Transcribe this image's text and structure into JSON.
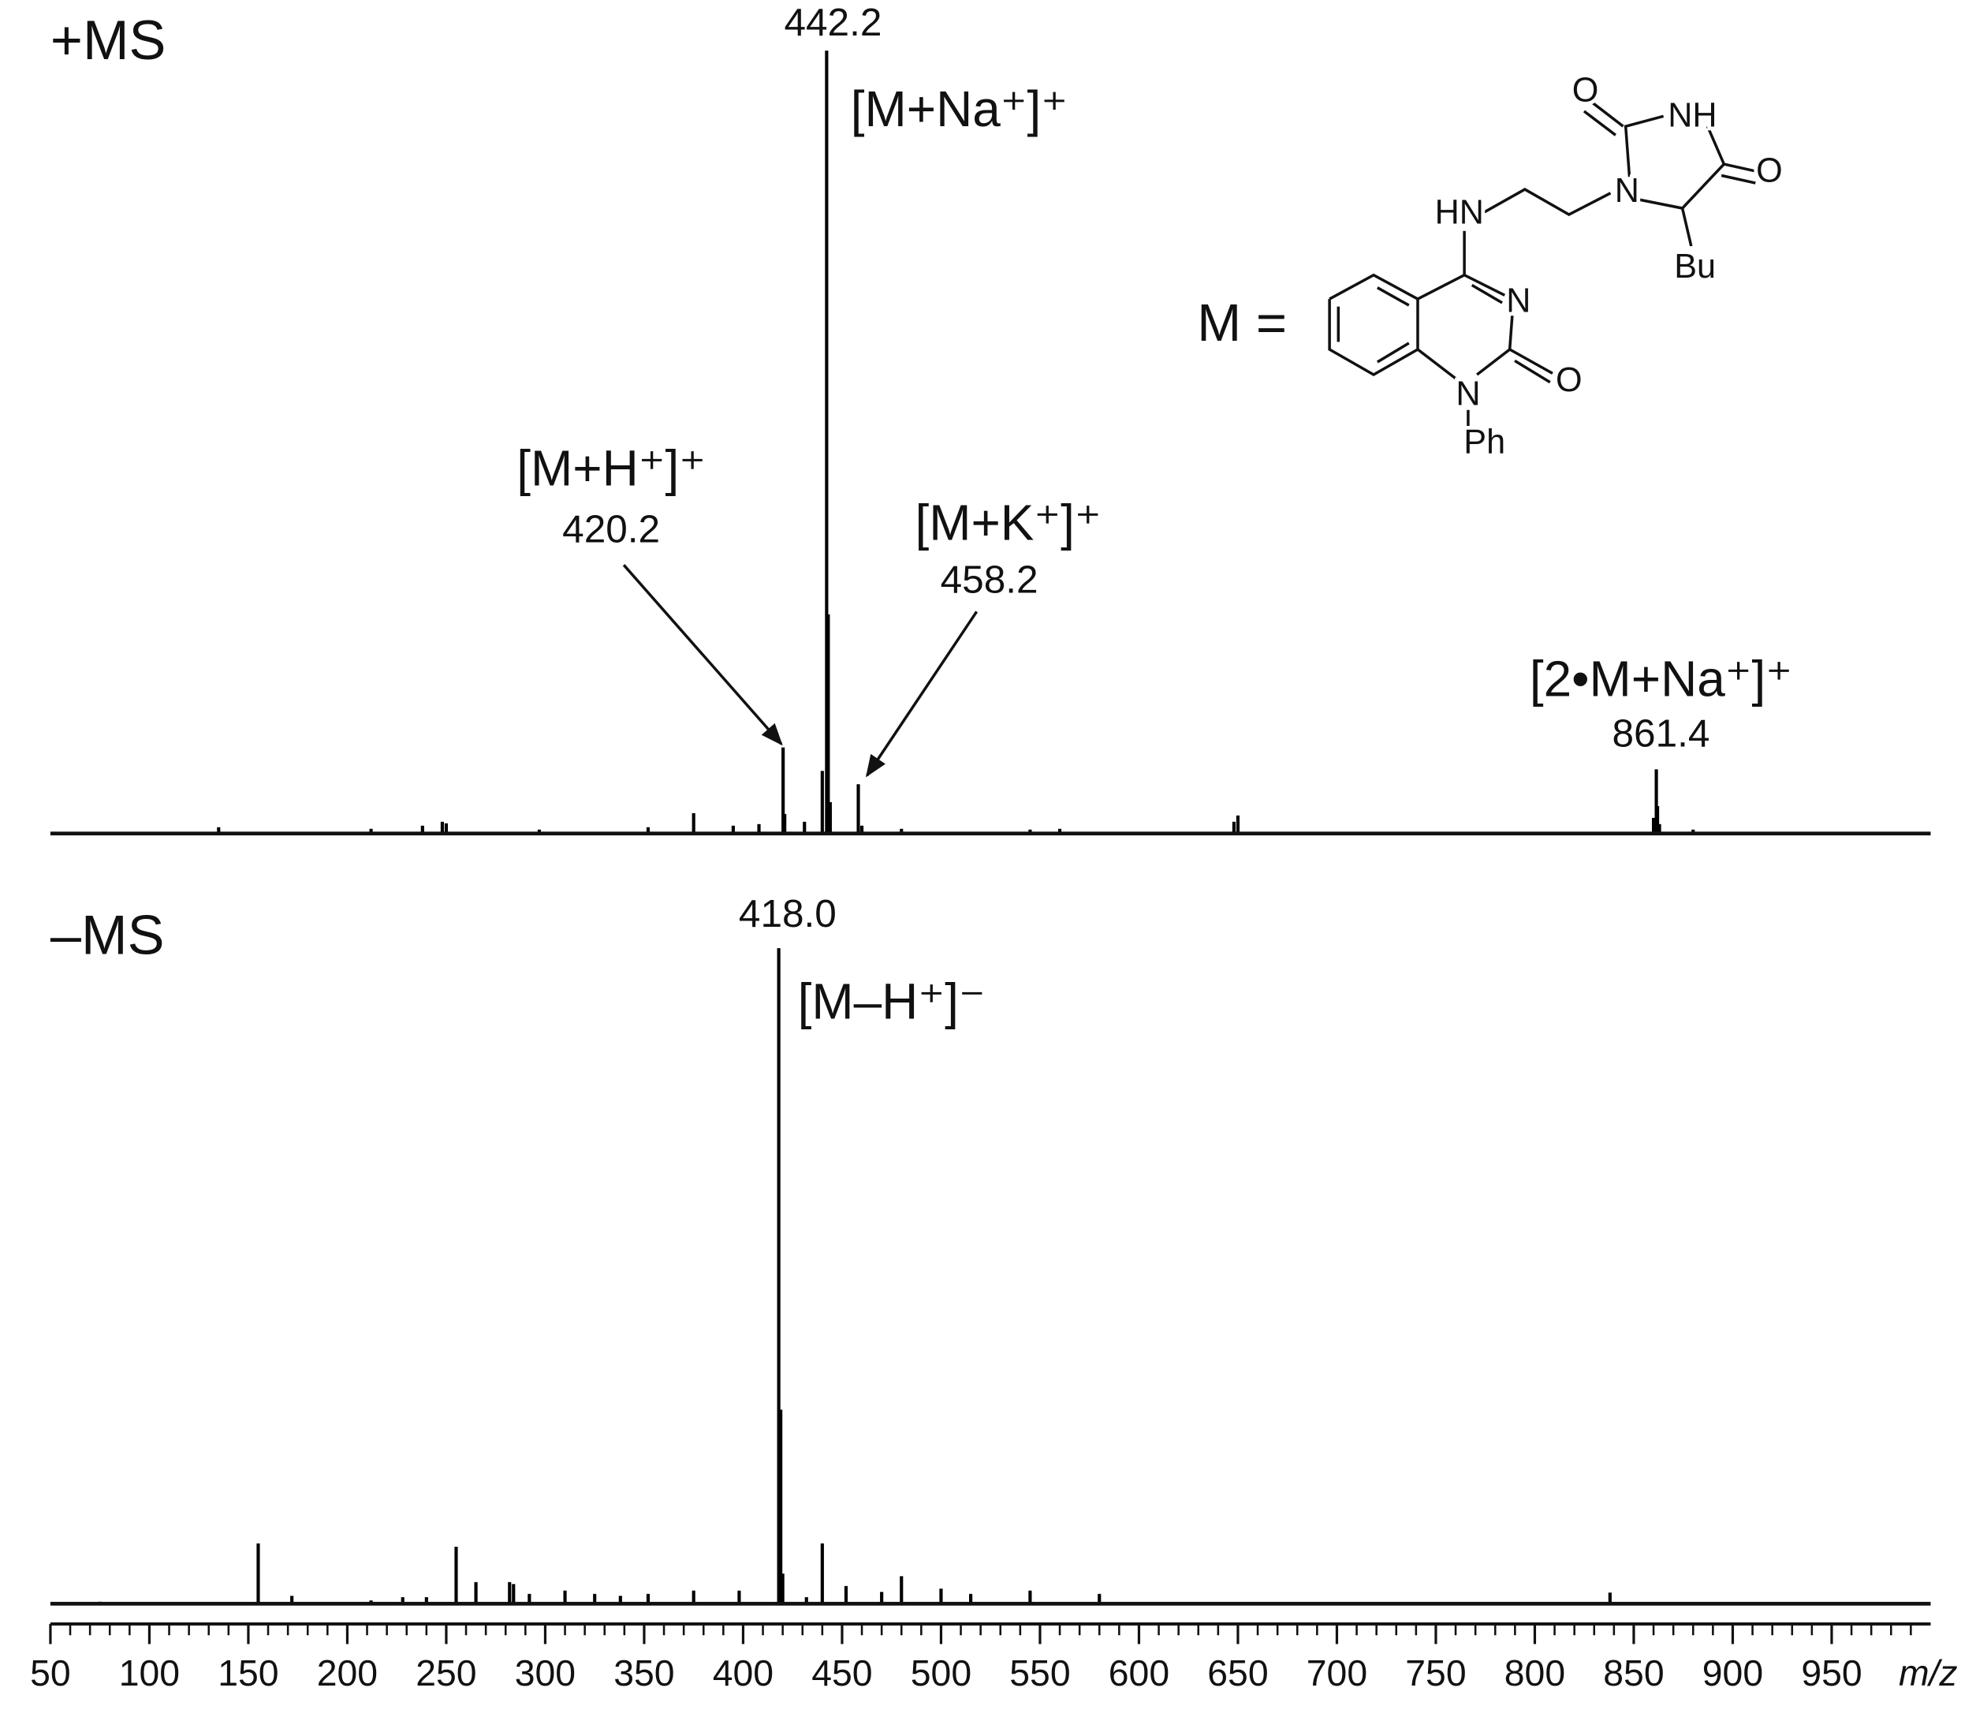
{
  "chart_data": [
    {
      "type": "stick",
      "title": "+MS",
      "color": "#000000",
      "xlim": [
        50,
        1000
      ],
      "ylim": [
        0,
        100
      ],
      "x": [
        135,
        212,
        238,
        248,
        250,
        297,
        352,
        375,
        395,
        408,
        420.2,
        421,
        431,
        440,
        442.2,
        443,
        444,
        458.2,
        460,
        480,
        545,
        560,
        648,
        650,
        860,
        861.4,
        862,
        863,
        880
      ],
      "values": [
        0.8,
        0.6,
        1.0,
        1.5,
        1.3,
        0.5,
        0.8,
        2.6,
        1.0,
        1.2,
        11,
        2.5,
        1.5,
        8.0,
        100,
        28,
        4,
        6.3,
        1.0,
        0.6,
        0.5,
        0.6,
        1.5,
        2.3,
        2.0,
        8.2,
        3.5,
        1.2,
        0.5
      ],
      "annotations": [
        {
          "ion": "[M+Na⁺]⁺",
          "mz": {
            "value": 442.2,
            "label": "442.2"
          }
        },
        {
          "ion": "[M+H⁺]⁺",
          "mz": {
            "value": 420.2,
            "label": "420.2"
          }
        },
        {
          "ion": "[M+K⁺]⁺",
          "mz": {
            "value": 458.2,
            "label": "458.2"
          }
        },
        {
          "ion": "[2•M+Na⁺]⁺",
          "mz": {
            "value": 861.4,
            "label": "861.4"
          }
        }
      ]
    },
    {
      "type": "stick",
      "title": "–MS",
      "color": "#000000",
      "xlim": [
        50,
        1000
      ],
      "ylim": [
        0,
        100
      ],
      "xlabel": "m/z",
      "xticks": [
        50,
        100,
        150,
        200,
        250,
        300,
        350,
        400,
        450,
        500,
        550,
        600,
        650,
        700,
        750,
        800,
        850,
        900,
        950
      ],
      "xminor": [
        60,
        70,
        80,
        90,
        110,
        120,
        130,
        140,
        160,
        170,
        180,
        190,
        210,
        220,
        230,
        240,
        260,
        270,
        280,
        290,
        310,
        320,
        330,
        340,
        360,
        370,
        380,
        390,
        410,
        420,
        430,
        440,
        460,
        470,
        480,
        490,
        510,
        520,
        530,
        540,
        560,
        570,
        580,
        590,
        610,
        620,
        630,
        640,
        660,
        670,
        680,
        690,
        710,
        720,
        730,
        740,
        760,
        770,
        780,
        790,
        810,
        820,
        830,
        840,
        860,
        870,
        880,
        890,
        910,
        920,
        930,
        940,
        960,
        970,
        980,
        990
      ],
      "x": [
        75,
        155,
        172,
        212,
        228,
        240,
        255,
        265,
        282,
        284,
        292,
        310,
        325,
        338,
        352,
        375,
        398,
        418.0,
        419,
        420,
        432,
        440,
        452,
        470,
        480,
        500,
        515,
        545,
        580,
        838
      ],
      "values": [
        0.3,
        9.2,
        1.2,
        0.5,
        1.0,
        1.0,
        8.7,
        3.3,
        3.3,
        3.0,
        1.5,
        2.0,
        1.5,
        1.2,
        1.5,
        2.0,
        2.0,
        100,
        29.6,
        4.6,
        1.0,
        9.2,
        2.7,
        1.8,
        4.2,
        2.3,
        1.5,
        2.0,
        1.5,
        1.7
      ],
      "annotations": [
        {
          "ion": "[M–H⁺]⁻",
          "mz": {
            "value": 418.0,
            "label": "418.0"
          }
        }
      ]
    }
  ],
  "structure": {
    "label": "M =",
    "atoms": [
      "O",
      "NH",
      "O",
      "N",
      "HN",
      "Bu",
      "N",
      "O",
      "N",
      "Ph"
    ]
  }
}
